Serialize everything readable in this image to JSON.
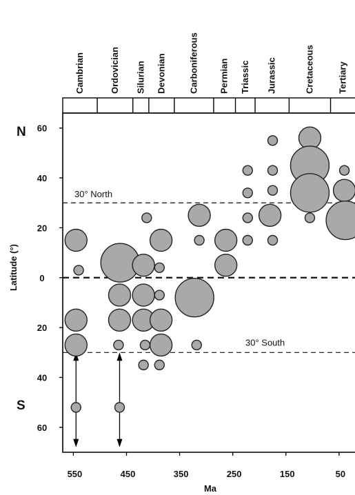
{
  "chart_data": {
    "type": "scatter",
    "title": "",
    "xlabel": "Ma",
    "ylabel": "Latitude (°)",
    "xlim": [
      570,
      20
    ],
    "ylim": [
      -70,
      66
    ],
    "x_ticks": [
      550,
      450,
      350,
      250,
      150,
      50
    ],
    "y_ticks": [
      {
        "value": 60,
        "label": "60"
      },
      {
        "value": 40,
        "label": "40"
      },
      {
        "value": 20,
        "label": "20"
      },
      {
        "value": 0,
        "label": "0"
      },
      {
        "value": -20,
        "label": "20"
      },
      {
        "value": -40,
        "label": "40"
      },
      {
        "value": -60,
        "label": "60"
      }
    ],
    "hemisphere_labels": {
      "north": "N",
      "south": "S"
    },
    "periods": [
      {
        "name": "Cambrian",
        "start": 570,
        "end": 505
      },
      {
        "name": "Ordovician",
        "start": 505,
        "end": 438
      },
      {
        "name": "Silurian",
        "start": 438,
        "end": 408
      },
      {
        "name": "Devonian",
        "start": 408,
        "end": 360
      },
      {
        "name": "Carboniferous",
        "start": 360,
        "end": 286
      },
      {
        "name": "Permian",
        "start": 286,
        "end": 245
      },
      {
        "name": "Triassic",
        "start": 245,
        "end": 208
      },
      {
        "name": "Jurassic",
        "start": 208,
        "end": 144
      },
      {
        "name": "Cretaceous",
        "start": 144,
        "end": 66
      },
      {
        "name": "Tertiary",
        "start": 66,
        "end": 20
      }
    ],
    "reference_lines": [
      {
        "label": "30° North",
        "value": 30
      },
      {
        "label": "",
        "value": 0
      },
      {
        "label": "30° South",
        "value": -30
      }
    ],
    "arrows": [
      {
        "x": 545,
        "from": -30,
        "to": -68
      },
      {
        "x": 463,
        "from": -30,
        "to": -68
      }
    ],
    "points": [
      {
        "x": 545,
        "y": 15,
        "size": 3
      },
      {
        "x": 540,
        "y": 3,
        "size": 1
      },
      {
        "x": 545,
        "y": -17,
        "size": 3
      },
      {
        "x": 545,
        "y": -27,
        "size": 3
      },
      {
        "x": 545,
        "y": -52,
        "size": 1
      },
      {
        "x": 462,
        "y": 6,
        "size": 5
      },
      {
        "x": 463,
        "y": -7,
        "size": 3
      },
      {
        "x": 463,
        "y": -17,
        "size": 3
      },
      {
        "x": 465,
        "y": -27,
        "size": 1
      },
      {
        "x": 463,
        "y": -52,
        "size": 1
      },
      {
        "x": 412,
        "y": 24,
        "size": 1
      },
      {
        "x": 418,
        "y": 5,
        "size": 3
      },
      {
        "x": 418,
        "y": -7,
        "size": 3
      },
      {
        "x": 418,
        "y": -17,
        "size": 3
      },
      {
        "x": 415,
        "y": -27,
        "size": 1
      },
      {
        "x": 418,
        "y": -35,
        "size": 1
      },
      {
        "x": 385,
        "y": 15,
        "size": 3
      },
      {
        "x": 388,
        "y": 4,
        "size": 1
      },
      {
        "x": 388,
        "y": -7,
        "size": 1
      },
      {
        "x": 385,
        "y": -17,
        "size": 3
      },
      {
        "x": 385,
        "y": -27,
        "size": 3
      },
      {
        "x": 388,
        "y": -35,
        "size": 1
      },
      {
        "x": 313,
        "y": 25,
        "size": 3
      },
      {
        "x": 313,
        "y": 15,
        "size": 1
      },
      {
        "x": 322,
        "y": -8,
        "size": 5
      },
      {
        "x": 318,
        "y": -27,
        "size": 1
      },
      {
        "x": 263,
        "y": 15,
        "size": 3
      },
      {
        "x": 263,
        "y": 5,
        "size": 3
      },
      {
        "x": 222,
        "y": 43,
        "size": 1
      },
      {
        "x": 222,
        "y": 34,
        "size": 1
      },
      {
        "x": 222,
        "y": 24,
        "size": 1
      },
      {
        "x": 222,
        "y": 15,
        "size": 1
      },
      {
        "x": 175,
        "y": 55,
        "size": 1
      },
      {
        "x": 175,
        "y": 43,
        "size": 1
      },
      {
        "x": 175,
        "y": 35,
        "size": 1
      },
      {
        "x": 180,
        "y": 25,
        "size": 3
      },
      {
        "x": 175,
        "y": 15,
        "size": 1
      },
      {
        "x": 105,
        "y": 56,
        "size": 3
      },
      {
        "x": 105,
        "y": 45,
        "size": 5
      },
      {
        "x": 105,
        "y": 34,
        "size": 5
      },
      {
        "x": 105,
        "y": 24,
        "size": 1
      },
      {
        "x": 40,
        "y": 43,
        "size": 1
      },
      {
        "x": 40,
        "y": 35,
        "size": 3
      },
      {
        "x": 38,
        "y": 23,
        "size": 5
      }
    ]
  }
}
